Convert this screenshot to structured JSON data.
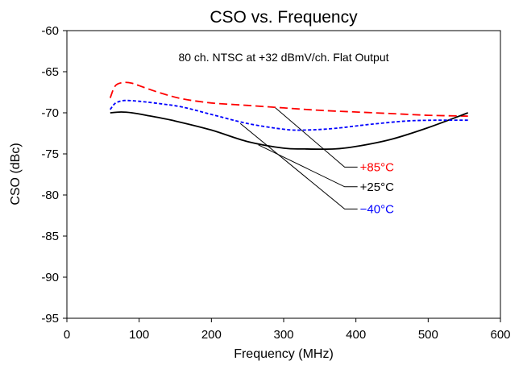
{
  "chart_data": {
    "type": "line",
    "title": "CSO vs. Frequency",
    "xlabel": "Frequency (MHz)",
    "ylabel": "CSO (dBc)",
    "xlim": [
      0,
      600
    ],
    "ylim": [
      -95,
      -60
    ],
    "xticks": [
      0,
      100,
      200,
      300,
      400,
      500,
      600
    ],
    "yticks": [
      -60,
      -65,
      -70,
      -75,
      -80,
      -85,
      -90,
      -95
    ],
    "grid": false,
    "annotation": "80 ch. NTSC at +32 dBmV/ch. Flat Output",
    "series": [
      {
        "name": "+85°C",
        "color": "#ff0000",
        "line_style": "dashed",
        "x": [
          60,
          65,
          70,
          80,
          90,
          100,
          130,
          160,
          200,
          250,
          300,
          350,
          400,
          450,
          500,
          555
        ],
        "y": [
          -68.2,
          -67.0,
          -66.5,
          -66.3,
          -66.4,
          -66.7,
          -67.6,
          -68.3,
          -68.8,
          -69.1,
          -69.4,
          -69.7,
          -69.9,
          -70.1,
          -70.3,
          -70.4
        ]
      },
      {
        "name": "+25°C",
        "color": "#000000",
        "line_style": "solid",
        "x": [
          60,
          75,
          90,
          110,
          150,
          200,
          250,
          300,
          330,
          370,
          400,
          450,
          500,
          555
        ],
        "y": [
          -70.0,
          -69.9,
          -70.0,
          -70.3,
          -71.0,
          -72.1,
          -73.5,
          -74.3,
          -74.4,
          -74.4,
          -74.1,
          -73.2,
          -71.8,
          -70.0
        ]
      },
      {
        "name": "−40°C",
        "color": "#0000ff",
        "line_style": "dotted",
        "x": [
          60,
          65,
          70,
          80,
          100,
          130,
          160,
          200,
          250,
          300,
          330,
          370,
          420,
          470,
          510,
          555
        ],
        "y": [
          -69.6,
          -69.0,
          -68.7,
          -68.5,
          -68.6,
          -68.9,
          -69.3,
          -70.2,
          -71.3,
          -72.0,
          -72.1,
          -71.9,
          -71.4,
          -71.0,
          -70.9,
          -70.9
        ]
      }
    ],
    "series_labels": [
      {
        "text": "+85°C",
        "color": "#ff0000",
        "anchor_x": 288,
        "anchor_y": -69.35,
        "elbow_x": 400,
        "label_y": -76.6
      },
      {
        "text": "+25°C",
        "color": "#000000",
        "anchor_x": 265,
        "anchor_y": -73.9,
        "elbow_x": 400,
        "label_y": -79.0
      },
      {
        "text": "−40°C",
        "color": "#0000ff",
        "anchor_x": 240,
        "anchor_y": -71.3,
        "elbow_x": 400,
        "label_y": -81.7
      }
    ]
  }
}
